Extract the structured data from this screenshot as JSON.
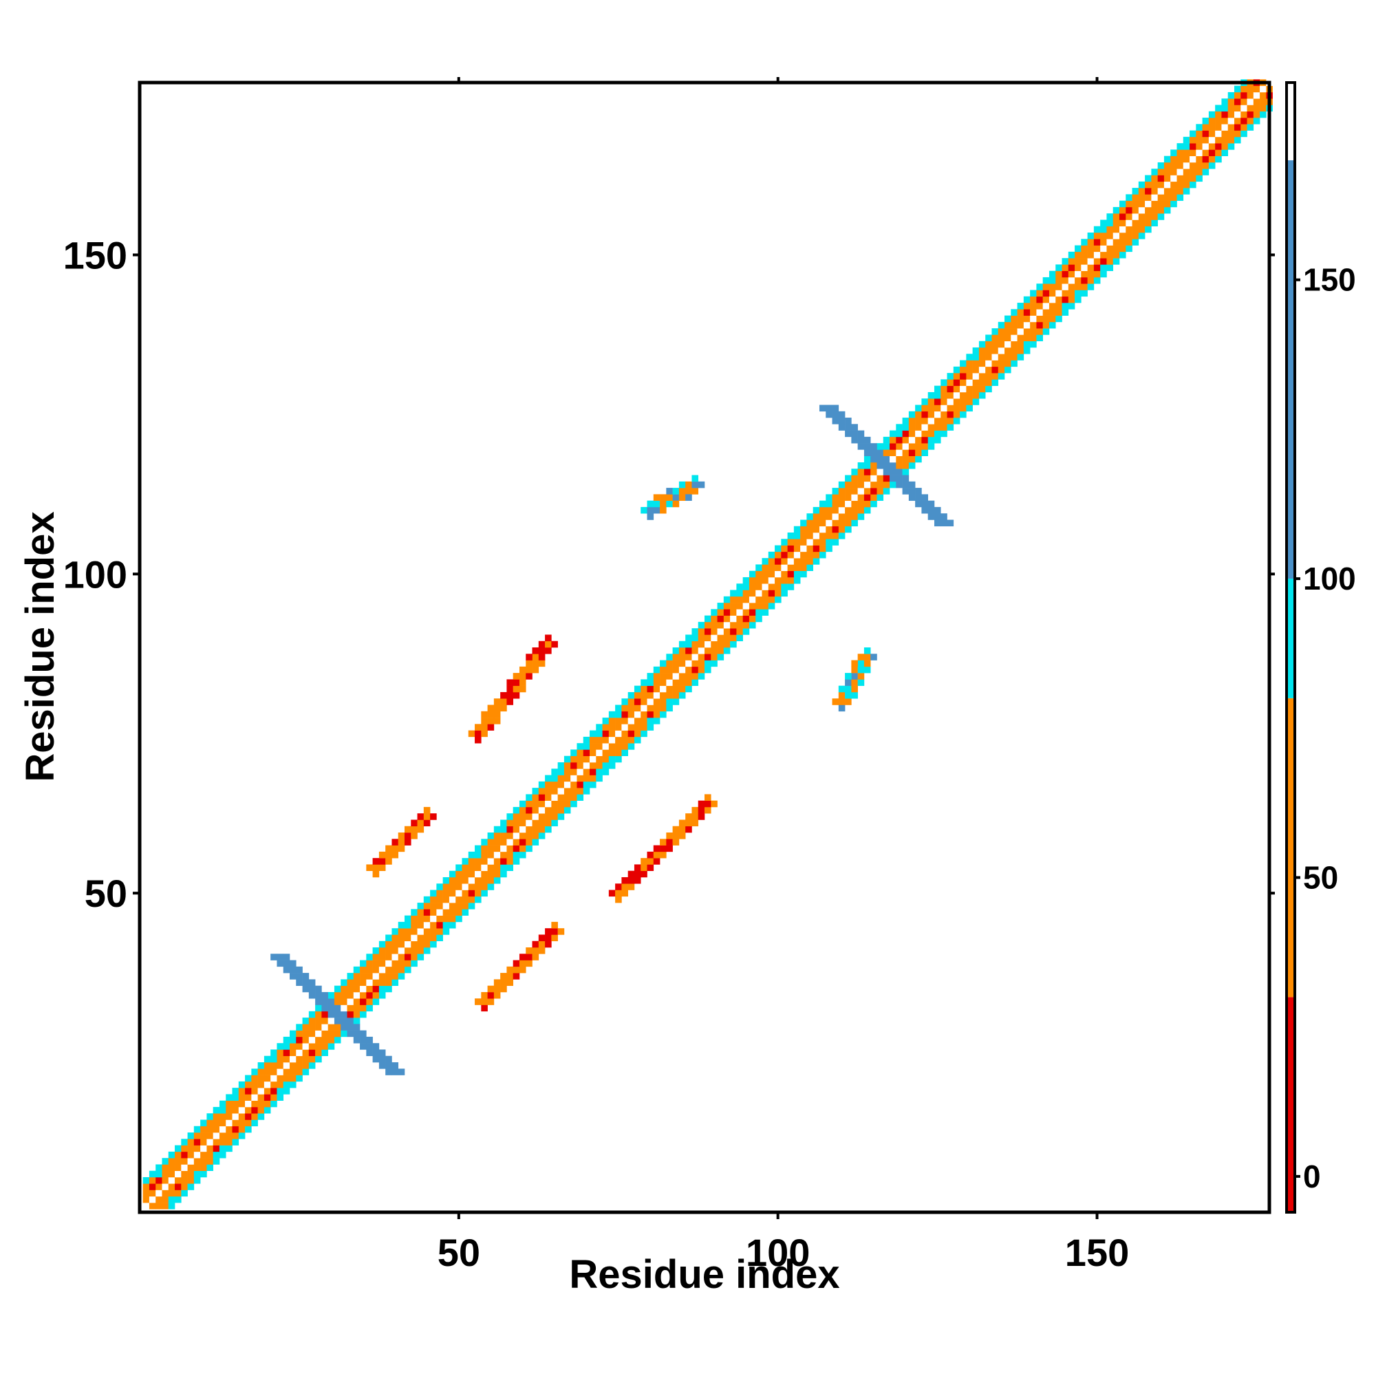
{
  "chart_data": {
    "type": "heatmap",
    "title": "",
    "xlabel": "Residue index",
    "ylabel": "Residue index",
    "xlim": [
      1,
      177
    ],
    "ylim": [
      1,
      177
    ],
    "x_ticks": [
      "50",
      "100",
      "150"
    ],
    "y_ticks": [
      "50",
      "100",
      "150"
    ],
    "colorbar": {
      "range": [
        -6,
        183
      ],
      "ticks": [
        "0",
        "50",
        "100",
        "150"
      ],
      "bands": [
        {
          "from": -6,
          "to": 30,
          "color": "#e60000"
        },
        {
          "from": 30,
          "to": 80,
          "color": "#ff8c00"
        },
        {
          "from": 80,
          "to": 100,
          "color": "#00e5ee"
        },
        {
          "from": 100,
          "to": 170,
          "color": "#4a90c8"
        },
        {
          "from": 170,
          "to": 183,
          "color": "#ffffff"
        }
      ]
    },
    "grid": false,
    "legend": "colorbar-right",
    "features": [
      {
        "label": "diagonal band",
        "x1": 1,
        "y1": 1,
        "x2": 177,
        "y2": 177,
        "width": 4,
        "value": 45
      },
      {
        "label": "cross near 30",
        "cx": 31,
        "cy": 31,
        "arm": 9,
        "value": 130
      },
      {
        "label": "cross near 118",
        "cx": 117,
        "cy": 117,
        "arm": 9,
        "value": 130
      },
      {
        "label": "antiparallel/parallel strand 1",
        "x1": 37,
        "y1": 54,
        "x2": 45,
        "y2": 62,
        "value": 15
      },
      {
        "label": "parallel strand 2",
        "x1": 53,
        "y1": 75,
        "x2": 64,
        "y2": 89,
        "value": 12
      },
      {
        "label": "parallel strand 3",
        "x1": 54,
        "y1": 33,
        "x2": 65,
        "y2": 44,
        "value": 12
      },
      {
        "label": "parallel strand 4",
        "x1": 75,
        "y1": 50,
        "x2": 89,
        "y2": 64,
        "value": 12
      },
      {
        "label": "patch 1",
        "x1": 110,
        "y1": 80,
        "x2": 114,
        "y2": 87,
        "value": 55
      },
      {
        "label": "patch 2",
        "x1": 80,
        "y1": 110,
        "x2": 87,
        "y2": 114,
        "value": 55
      }
    ]
  }
}
